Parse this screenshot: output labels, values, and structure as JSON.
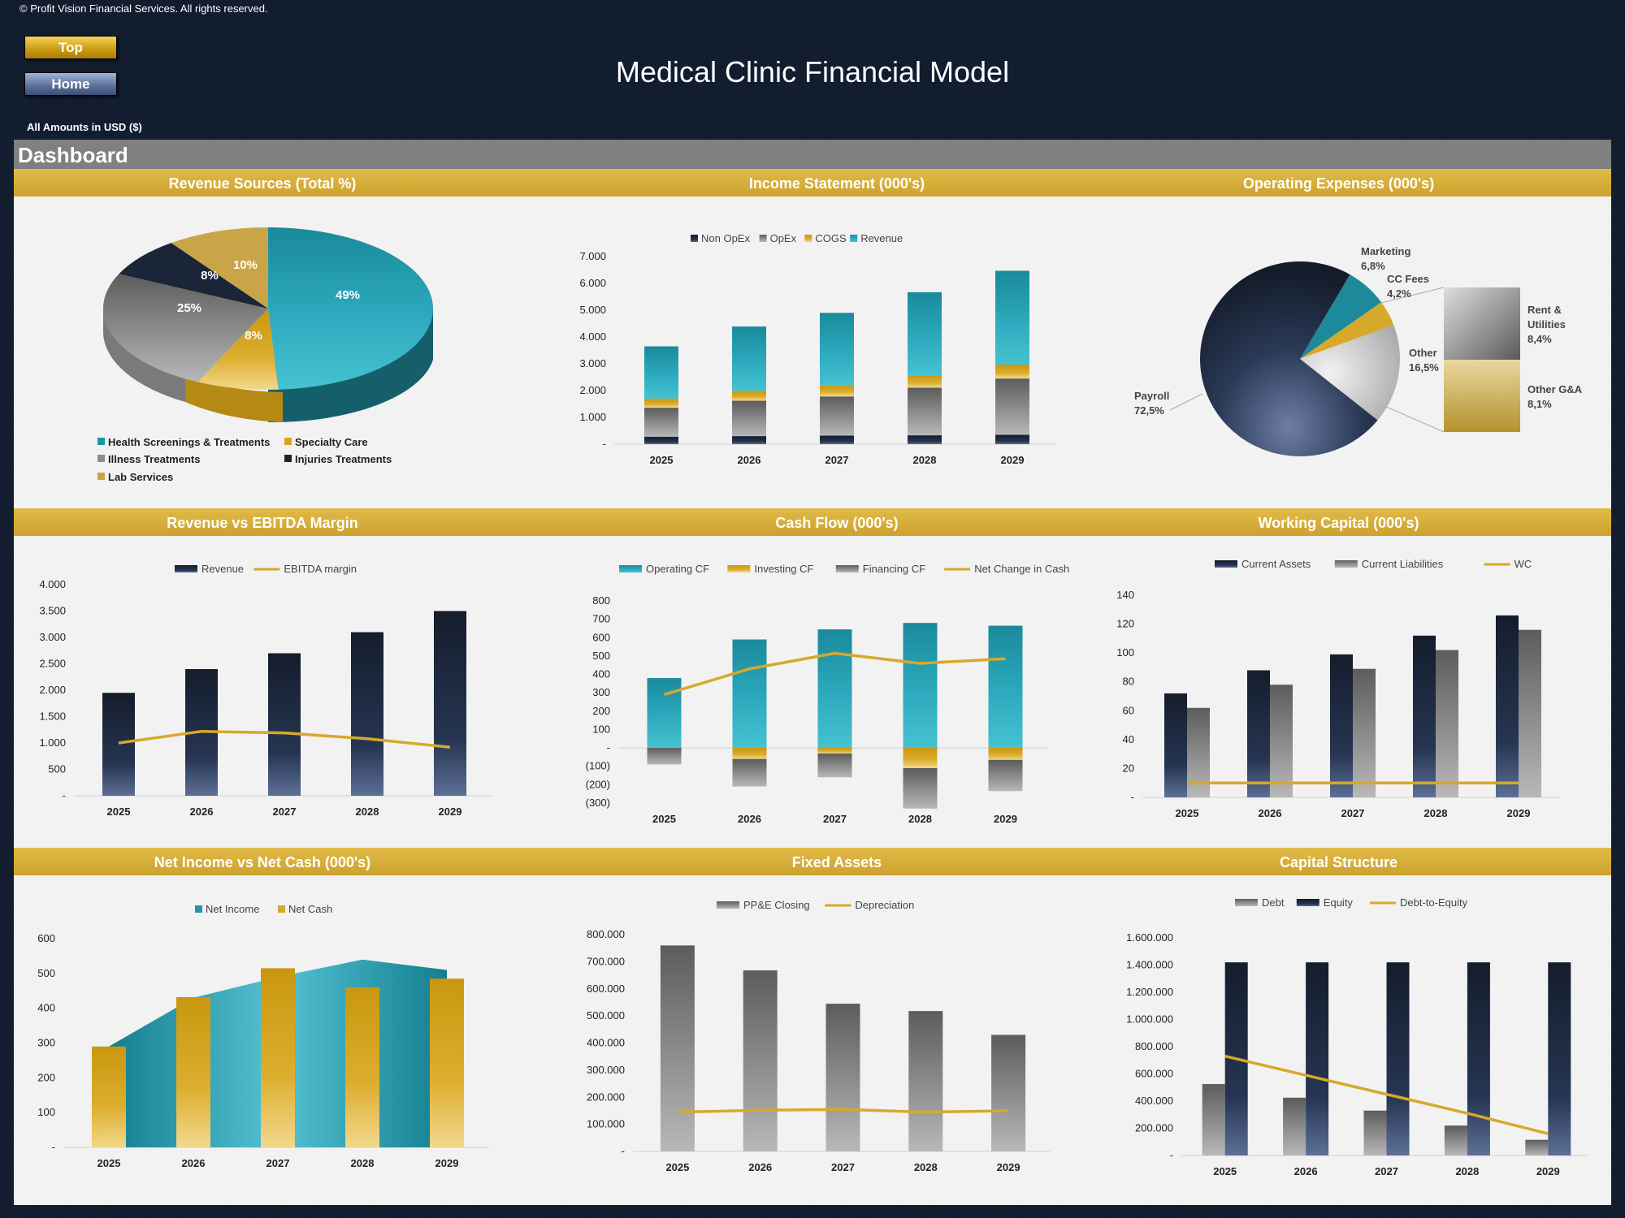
{
  "copyright": "© Profit Vision Financial Services. All rights reserved.",
  "nav": {
    "top_label": "Top",
    "home_label": "Home"
  },
  "title": "Medical Clinic Financial Model",
  "amounts_note": "All Amounts in  USD ($)",
  "dashboard_label": "Dashboard",
  "colors": {
    "gold": "#d6a92b",
    "teal": "#2196a8",
    "navy": "#1b2538",
    "grey": "#8a8a8a",
    "header_bar": "#808080"
  },
  "panels": {
    "revenue_sources": "Revenue Sources (Total %)",
    "income_statement": "Income Statement (000's)",
    "operating_expenses": "Operating Expenses (000's)",
    "revenue_ebitda": "Revenue vs EBITDA Margin",
    "cash_flow": "Cash Flow (000's)",
    "working_capital": "Working Capital (000's)",
    "net_income_cash": "Net Income vs Net Cash (000's)",
    "fixed_assets": "Fixed Assets",
    "capital_structure": "Capital Structure"
  },
  "chart_data": [
    {
      "id": "revenue_sources",
      "type": "pie",
      "title": "Revenue Sources (Total %)",
      "labels": [
        "Health Screenings & Treatments",
        "Specialty Care",
        "Illness Treatments",
        "Injuries Treatments",
        "Lab Services"
      ],
      "values": [
        49,
        8,
        25,
        8,
        10
      ],
      "display_labels": [
        "49%",
        "8%",
        "25%",
        "8%",
        "10%"
      ],
      "colors": [
        "#1f93a5",
        "#d9a520",
        "#8c8c8c",
        "#1b2538",
        "#c9a548"
      ]
    },
    {
      "id": "income_statement",
      "type": "bar",
      "stacked": true,
      "title": "Income Statement (000's)",
      "categories": [
        "2025",
        "2026",
        "2027",
        "2028",
        "2029"
      ],
      "series": [
        {
          "name": "Non OpEx",
          "values": [
            280,
            300,
            320,
            330,
            350
          ],
          "color": "#1b2538"
        },
        {
          "name": "OpEx",
          "values": [
            1080,
            1320,
            1460,
            1780,
            2100
          ],
          "color": "#8a8a8a"
        },
        {
          "name": "COGS",
          "values": [
            340,
            370,
            420,
            460,
            520
          ],
          "color": "#d6a92b"
        },
        {
          "name": "Revenue",
          "values": [
            1950,
            2400,
            2700,
            3100,
            3500
          ],
          "color": "#2196a8"
        }
      ],
      "yticks": [
        "-",
        "1.000",
        "2.000",
        "3.000",
        "4.000",
        "5.000",
        "6.000",
        "7.000"
      ],
      "ylim": [
        0,
        7000
      ]
    },
    {
      "id": "operating_expenses",
      "type": "pie",
      "title": "Operating Expenses (000's)",
      "labels": [
        "Payroll",
        "Marketing",
        "CC Fees",
        "Other",
        "Rent & Utilities",
        "Other G&A"
      ],
      "values": [
        72.5,
        6.8,
        4.2,
        16.5,
        8.4,
        8.1
      ],
      "label_lines": [
        [
          "Payroll",
          "72,5%"
        ],
        [
          "Marketing",
          "6,8%"
        ],
        [
          "CC Fees",
          "4,2%"
        ],
        [
          "Other",
          "16,5%"
        ],
        [
          "Rent &",
          "Utilities",
          "8,4%"
        ],
        [
          "Other G&A",
          "8,1%"
        ]
      ]
    },
    {
      "id": "revenue_ebitda",
      "type": "bar",
      "title": "Revenue vs EBITDA Margin",
      "categories": [
        "2025",
        "2026",
        "2027",
        "2028",
        "2029"
      ],
      "series": [
        {
          "name": "Revenue",
          "values": [
            1950,
            2400,
            2700,
            3100,
            3500
          ],
          "color": "#1b2538"
        },
        {
          "name": "EBITDA margin",
          "type": "line",
          "values": [
            1000,
            1220,
            1190,
            1080,
            920
          ],
          "color": "#d6a92b"
        }
      ],
      "yticks": [
        "-",
        "500",
        "1.000",
        "1.500",
        "2.000",
        "2.500",
        "3.000",
        "3.500",
        "4.000"
      ],
      "ylim": [
        0,
        4000
      ]
    },
    {
      "id": "cash_flow",
      "type": "bar",
      "title": "Cash Flow (000's)",
      "categories": [
        "2025",
        "2026",
        "2027",
        "2028",
        "2029"
      ],
      "series": [
        {
          "name": "Operating CF",
          "values": [
            380,
            590,
            645,
            680,
            665
          ],
          "color": "#2196a8"
        },
        {
          "name": "Investing CF",
          "values": [
            0,
            -60,
            -30,
            -110,
            -65
          ],
          "color": "#d6a92b"
        },
        {
          "name": "Financing CF",
          "values": [
            -90,
            -150,
            -130,
            -220,
            -170
          ],
          "color": "#8a8a8a"
        },
        {
          "name": "Net Change in Cash",
          "type": "line",
          "values": [
            290,
            430,
            515,
            460,
            485
          ],
          "color": "#d6a92b"
        }
      ],
      "yticks": [
        "(300)",
        "(200)",
        "(100)",
        "-",
        "100",
        "200",
        "300",
        "400",
        "500",
        "600",
        "700",
        "800"
      ],
      "ylim": [
        -300,
        800
      ]
    },
    {
      "id": "working_capital",
      "type": "bar",
      "title": "Working Capital (000's)",
      "categories": [
        "2025",
        "2026",
        "2027",
        "2028",
        "2029"
      ],
      "series": [
        {
          "name": "Current Assets",
          "values": [
            72,
            88,
            99,
            112,
            126
          ],
          "color": "#1b2538"
        },
        {
          "name": "Current Liabilities",
          "values": [
            62,
            78,
            89,
            102,
            116
          ],
          "color": "#8a8a8a"
        },
        {
          "name": "WC",
          "type": "line",
          "values": [
            10,
            10,
            10,
            10,
            10
          ],
          "color": "#d6a92b"
        }
      ],
      "yticks": [
        "-",
        "20",
        "40",
        "60",
        "80",
        "100",
        "120",
        "140"
      ],
      "ylim": [
        0,
        140
      ]
    },
    {
      "id": "net_income_cash",
      "type": "area",
      "title": "Net Income vs Net Cash (000's)",
      "categories": [
        "2025",
        "2026",
        "2027",
        "2028",
        "2029"
      ],
      "series": [
        {
          "name": "Net Income",
          "type": "area",
          "values": [
            290,
            430,
            490,
            540,
            510
          ],
          "color": "#2196a8"
        },
        {
          "name": "Net Cash",
          "type": "bar",
          "values": [
            290,
            432,
            515,
            460,
            485
          ],
          "color": "#d6a92b"
        }
      ],
      "yticks": [
        "-",
        "100",
        "200",
        "300",
        "400",
        "500",
        "600"
      ],
      "ylim": [
        0,
        600
      ]
    },
    {
      "id": "fixed_assets",
      "type": "bar",
      "title": "Fixed Assets",
      "categories": [
        "2025",
        "2026",
        "2027",
        "2028",
        "2029"
      ],
      "series": [
        {
          "name": "PP&E Closing",
          "values": [
            760000,
            668000,
            545000,
            518000,
            430000
          ],
          "color": "#8a8a8a"
        },
        {
          "name": "Depreciation",
          "type": "line",
          "values": [
            145000,
            152000,
            155000,
            145000,
            150000
          ],
          "color": "#d6a92b"
        }
      ],
      "yticks": [
        "-",
        "100.000",
        "200.000",
        "300.000",
        "400.000",
        "500.000",
        "600.000",
        "700.000",
        "800.000"
      ],
      "ylim": [
        0,
        800000
      ]
    },
    {
      "id": "capital_structure",
      "type": "bar",
      "title": "Capital Structure",
      "categories": [
        "2025",
        "2026",
        "2027",
        "2028",
        "2029"
      ],
      "series": [
        {
          "name": "Debt",
          "values": [
            525000,
            425000,
            330000,
            220000,
            115000
          ],
          "color": "#8a8a8a"
        },
        {
          "name": "Equity",
          "values": [
            1420000,
            1420000,
            1420000,
            1420000,
            1420000
          ],
          "color": "#1b2538"
        },
        {
          "name": "Debt-to-Equity",
          "type": "line",
          "values": [
            730000,
            590000,
            450000,
            310000,
            160000
          ],
          "color": "#d6a92b"
        }
      ],
      "yticks": [
        "-",
        "200.000",
        "400.000",
        "600.000",
        "800.000",
        "1.000.000",
        "1.200.000",
        "1.400.000",
        "1.600.000"
      ],
      "ylim": [
        0,
        1600000
      ]
    }
  ]
}
